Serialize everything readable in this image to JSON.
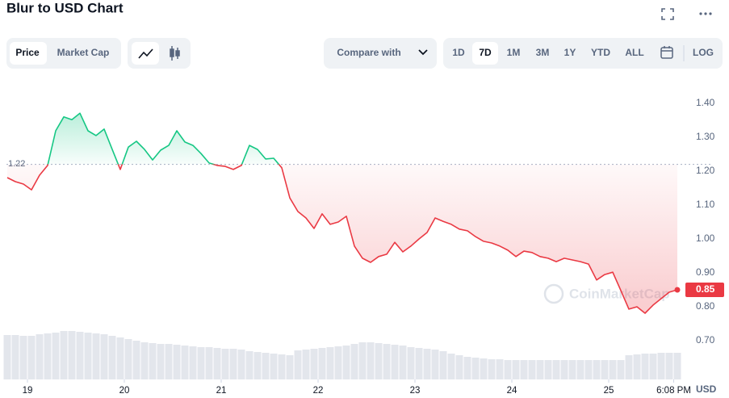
{
  "chart_data": {
    "type": "line",
    "title": "Blur to USD Chart",
    "x": [
      -5,
      -3,
      -1,
      1,
      3,
      5,
      7,
      9,
      11,
      13,
      15,
      17,
      19,
      21,
      23,
      25,
      27,
      29,
      31,
      33,
      35,
      37,
      39,
      41,
      43,
      45,
      47,
      49,
      51,
      53,
      55,
      57,
      59,
      61,
      63,
      65,
      67,
      69,
      71,
      73,
      75,
      77,
      79,
      81,
      83,
      85,
      87,
      89,
      91,
      93,
      95,
      97,
      99,
      101,
      103,
      105,
      107,
      109,
      111,
      113,
      115,
      117,
      119,
      121,
      123,
      125,
      127,
      129,
      131,
      133,
      135,
      137,
      139,
      141,
      143,
      145,
      147,
      149,
      151,
      153,
      155,
      157,
      159,
      161
    ],
    "series": [
      {
        "name": "Price",
        "color": "#ea3943",
        "color_above": "#16c784",
        "values": [
          1.181,
          1.169,
          1.162,
          1.145,
          1.188,
          1.217,
          1.319,
          1.36,
          1.352,
          1.371,
          1.319,
          1.305,
          1.324,
          1.264,
          1.205,
          1.271,
          1.288,
          1.264,
          1.233,
          1.262,
          1.276,
          1.319,
          1.286,
          1.276,
          1.252,
          1.224,
          1.217,
          1.214,
          1.205,
          1.217,
          1.276,
          1.264,
          1.236,
          1.238,
          1.21,
          1.121,
          1.081,
          1.062,
          1.031,
          1.074,
          1.043,
          1.05,
          1.067,
          0.979,
          0.943,
          0.931,
          0.948,
          0.955,
          0.99,
          0.962,
          0.979,
          1.0,
          1.019,
          1.062,
          1.052,
          1.043,
          1.029,
          1.024,
          1.007,
          0.993,
          0.988,
          0.979,
          0.967,
          0.948,
          0.964,
          0.96,
          0.948,
          0.943,
          0.933,
          0.943,
          0.938,
          0.933,
          0.926,
          0.879,
          0.895,
          0.902,
          0.848,
          0.793,
          0.8,
          0.781,
          0.805,
          0.824,
          0.843,
          0.85
        ]
      },
      {
        "name": "Volume",
        "color": "#e3e6ec",
        "values": [
          55,
          55,
          54,
          54,
          56,
          57,
          58,
          60,
          60,
          59,
          58,
          57,
          56,
          54,
          52,
          50,
          48,
          46,
          45,
          44,
          44,
          43,
          42,
          41,
          40,
          40,
          39,
          38,
          38,
          37,
          35,
          34,
          33,
          32,
          31,
          30,
          36,
          37,
          38,
          39,
          40,
          41,
          42,
          44,
          46,
          46,
          45,
          44,
          43,
          42,
          40,
          39,
          38,
          37,
          35,
          32,
          30,
          28,
          27,
          26,
          25,
          25,
          24,
          24,
          24,
          24,
          24,
          24,
          24,
          24,
          24,
          24,
          24,
          24,
          24,
          24,
          24,
          30,
          31,
          32,
          32,
          33,
          33,
          33
        ]
      }
    ],
    "baseline": 1.22,
    "current_price": {
      "value": 0.85,
      "label": "0.85"
    },
    "xlim": [
      -5.2,
      162.2
    ],
    "xticks": [
      {
        "value": 0,
        "label": "19"
      },
      {
        "value": 24,
        "label": "20"
      },
      {
        "value": 48,
        "label": "21"
      },
      {
        "value": 72,
        "label": "22"
      },
      {
        "value": 96,
        "label": "23"
      },
      {
        "value": 120,
        "label": "24"
      },
      {
        "value": 144,
        "label": "25"
      },
      {
        "value": 160.1,
        "label": "6:08 PM"
      }
    ],
    "ylim": [
      0.7,
      1.4
    ],
    "yticks": [
      {
        "value": 0.7,
        "label": "0.70"
      },
      {
        "value": 0.8,
        "label": "0.80"
      },
      {
        "value": 0.9,
        "label": "0.90"
      },
      {
        "value": 1.0,
        "label": "1.00"
      },
      {
        "value": 1.1,
        "label": "1.10"
      },
      {
        "value": 1.2,
        "label": "1.20"
      },
      {
        "value": 1.3,
        "label": "1.30"
      },
      {
        "value": 1.4,
        "label": "1.40"
      }
    ],
    "grid": false,
    "currency": "USD",
    "watermark": "CoinMarketCap",
    "tabs": [
      "Price",
      "Market Cap"
    ],
    "compare": "Compare with",
    "ranges": [
      "1D",
      "7D",
      "1M",
      "3M",
      "1Y",
      "YTD",
      "ALL"
    ],
    "log": "LOG"
  }
}
